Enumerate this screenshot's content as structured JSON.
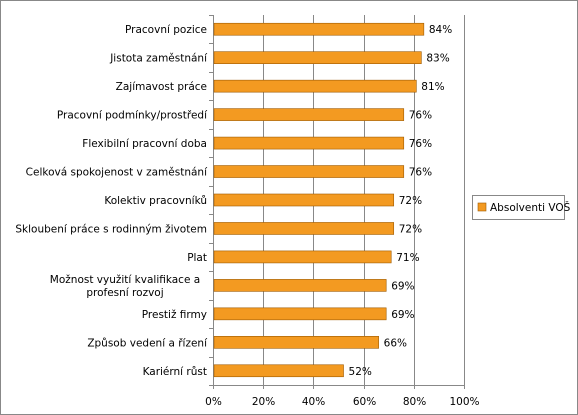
{
  "chart_data": {
    "type": "bar",
    "orientation": "horizontal",
    "categories": [
      "Pracovní pozice",
      "Jistota zaměstnání",
      "Zajímavost práce",
      "Pracovní podmínky/prostředí",
      "Flexibilní pracovní doba",
      "Celková spokojenost v zaměstnání",
      "Kolektiv pracovníků",
      "Skloubení práce s rodinným životem",
      "Plat",
      "Možnost využití kvalifikace a profesní rozvoj",
      "Prestiž firmy",
      "Způsob vedení a řízení",
      "Kariérní růst"
    ],
    "series": [
      {
        "name": "Absolventi VOŠ",
        "values": [
          84,
          83,
          81,
          76,
          76,
          76,
          72,
          72,
          71,
          69,
          69,
          66,
          52
        ],
        "labels": [
          "84%",
          "83%",
          "81%",
          "76%",
          "76%",
          "76%",
          "72%",
          "72%",
          "71%",
          "69%",
          "69%",
          "66%",
          "52%"
        ],
        "color": "#F39A21"
      }
    ],
    "x_ticks": [
      "0%",
      "20%",
      "40%",
      "60%",
      "80%",
      "100%"
    ],
    "xlim": [
      0,
      100
    ],
    "grid": true,
    "legend_position": "right",
    "colors": {
      "bar_fill": "#F39A21",
      "bar_stroke": "#9E5A00",
      "grid": "#888888",
      "axis": "#888888",
      "frame": "#888888"
    }
  }
}
